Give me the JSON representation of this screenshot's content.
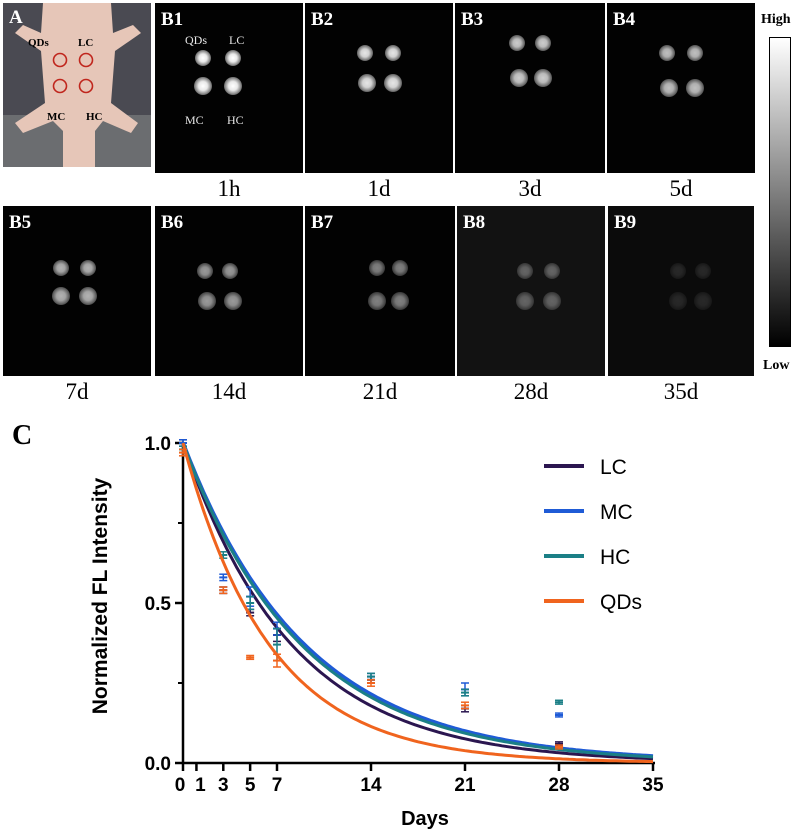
{
  "panel_a_label": "A",
  "mouse_labels": [
    "QDs",
    "LC",
    "MC",
    "HC"
  ],
  "b1_inner_labels": [
    "QDs",
    "LC",
    "MC",
    "HC"
  ],
  "panels": [
    {
      "label": "B1",
      "time": "1h",
      "brightness": 1.0
    },
    {
      "label": "B2",
      "time": "1d",
      "brightness": 0.9
    },
    {
      "label": "B3",
      "time": "3d",
      "brightness": 0.8
    },
    {
      "label": "B4",
      "time": "5d",
      "brightness": 0.75
    },
    {
      "label": "B5",
      "time": "7d",
      "brightness": 0.7
    },
    {
      "label": "B6",
      "time": "14d",
      "brightness": 0.6
    },
    {
      "label": "B7",
      "time": "21d",
      "brightness": 0.5
    },
    {
      "label": "B8",
      "time": "28d",
      "brightness": 0.35
    },
    {
      "label": "B9",
      "time": "35d",
      "brightness": 0.12
    }
  ],
  "colorbar": {
    "high": "High",
    "low": "Low"
  },
  "panel_c_label": "C",
  "chart_data": {
    "type": "line",
    "xlabel": "Days",
    "ylabel": "Normalized FL Intensity",
    "xlim": [
      0,
      35
    ],
    "ylim": [
      0,
      1.0
    ],
    "x_ticks": [
      0,
      1,
      3,
      5,
      7,
      14,
      21,
      28,
      35
    ],
    "x_tick_labels": [
      "0",
      "1",
      "3",
      "5",
      "7",
      "14",
      "21",
      "28",
      "35"
    ],
    "y_ticks": [
      0.0,
      0.5,
      1.0
    ],
    "y_tick_labels": [
      "0.0",
      "0.5",
      "1.0"
    ],
    "legend_position": "top-right",
    "series": [
      {
        "name": "LC",
        "color": "#2b1650",
        "decay_rate": 0.123,
        "points": [
          {
            "x": 0,
            "y": 1.0,
            "err": 0.01
          },
          {
            "x": 3,
            "y": 0.54,
            "err": 0.01
          },
          {
            "x": 5,
            "y": 0.47,
            "err": 0.01
          },
          {
            "x": 7,
            "y": 0.4,
            "err": 0.02
          },
          {
            "x": 14,
            "y": 0.26,
            "err": 0.01
          },
          {
            "x": 21,
            "y": 0.17,
            "err": 0.01
          },
          {
            "x": 28,
            "y": 0.06,
            "err": 0.005
          }
        ]
      },
      {
        "name": "MC",
        "color": "#1f5bd6",
        "decay_rate": 0.11,
        "points": [
          {
            "x": 0,
            "y": 1.0,
            "err": 0.01
          },
          {
            "x": 3,
            "y": 0.58,
            "err": 0.01
          },
          {
            "x": 5,
            "y": 0.52,
            "err": 0.03
          },
          {
            "x": 7,
            "y": 0.42,
            "err": 0.02
          },
          {
            "x": 14,
            "y": 0.27,
            "err": 0.01
          },
          {
            "x": 21,
            "y": 0.23,
            "err": 0.02
          },
          {
            "x": 28,
            "y": 0.15,
            "err": 0.005
          }
        ]
      },
      {
        "name": "HC",
        "color": "#1b7f86",
        "decay_rate": 0.113,
        "points": [
          {
            "x": 0,
            "y": 0.98,
            "err": 0.01
          },
          {
            "x": 3,
            "y": 0.65,
            "err": 0.01
          },
          {
            "x": 5,
            "y": 0.5,
            "err": 0.02
          },
          {
            "x": 7,
            "y": 0.37,
            "err": 0.05
          },
          {
            "x": 14,
            "y": 0.27,
            "err": 0.01
          },
          {
            "x": 21,
            "y": 0.22,
            "err": 0.01
          },
          {
            "x": 28,
            "y": 0.19,
            "err": 0.005
          }
        ]
      },
      {
        "name": "QDs",
        "color": "#f0641e",
        "decay_rate": 0.155,
        "points": [
          {
            "x": 0,
            "y": 0.97,
            "err": 0.01
          },
          {
            "x": 3,
            "y": 0.54,
            "err": 0.01
          },
          {
            "x": 5,
            "y": 0.33,
            "err": 0.005
          },
          {
            "x": 7,
            "y": 0.32,
            "err": 0.02
          },
          {
            "x": 14,
            "y": 0.25,
            "err": 0.01
          },
          {
            "x": 21,
            "y": 0.18,
            "err": 0.01
          },
          {
            "x": 28,
            "y": 0.05,
            "err": 0.003
          }
        ]
      }
    ]
  }
}
